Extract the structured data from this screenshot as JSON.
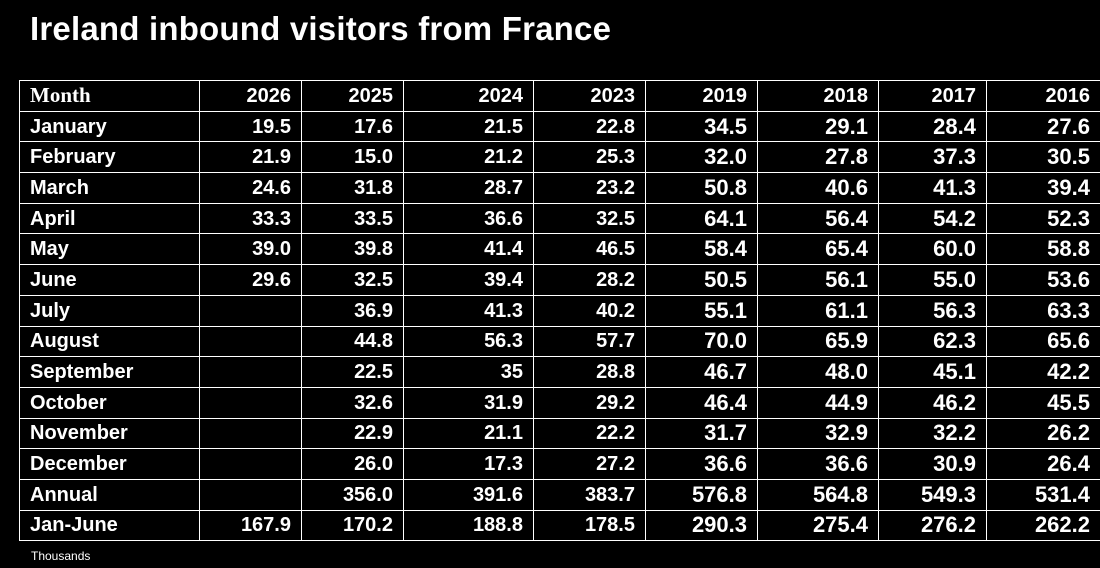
{
  "title": "Ireland inbound visitors from France",
  "footnote": "Thousands",
  "colors": {
    "background": "#000000",
    "text": "#ffffff",
    "grid": "#ffffff"
  },
  "chart_data": {
    "type": "table",
    "title": "Ireland inbound visitors from France",
    "row_header": "Month",
    "columns": [
      "2026",
      "2025",
      "2024",
      "2023",
      "2019",
      "2018",
      "2017",
      "2016"
    ],
    "rows": [
      {
        "label": "January",
        "values": [
          "19.5",
          "17.6",
          "21.5",
          "22.8",
          "34.5",
          "29.1",
          "28.4",
          "27.6"
        ]
      },
      {
        "label": "February",
        "values": [
          "21.9",
          "15.0",
          "21.2",
          "25.3",
          "32.0",
          "27.8",
          "37.3",
          "30.5"
        ]
      },
      {
        "label": "March",
        "values": [
          "24.6",
          "31.8",
          "28.7",
          "23.2",
          "50.8",
          "40.6",
          "41.3",
          "39.4"
        ]
      },
      {
        "label": "April",
        "values": [
          "33.3",
          "33.5",
          "36.6",
          "32.5",
          "64.1",
          "56.4",
          "54.2",
          "52.3"
        ]
      },
      {
        "label": "May",
        "values": [
          "39.0",
          "39.8",
          "41.4",
          "46.5",
          "58.4",
          "65.4",
          "60.0",
          "58.8"
        ]
      },
      {
        "label": "June",
        "values": [
          "29.6",
          "32.5",
          "39.4",
          "28.2",
          "50.5",
          "56.1",
          "55.0",
          "53.6"
        ]
      },
      {
        "label": "July",
        "values": [
          "",
          "36.9",
          "41.3",
          "40.2",
          "55.1",
          "61.1",
          "56.3",
          "63.3"
        ]
      },
      {
        "label": "August",
        "values": [
          "",
          "44.8",
          "56.3",
          "57.7",
          "70.0",
          "65.9",
          "62.3",
          "65.6"
        ]
      },
      {
        "label": "September",
        "values": [
          "",
          "22.5",
          "35",
          "28.8",
          "46.7",
          "48.0",
          "45.1",
          "42.2"
        ]
      },
      {
        "label": "October",
        "values": [
          "",
          "32.6",
          "31.9",
          "29.2",
          "46.4",
          "44.9",
          "46.2",
          "45.5"
        ]
      },
      {
        "label": "November",
        "values": [
          "",
          "22.9",
          "21.1",
          "22.2",
          "31.7",
          "32.9",
          "32.2",
          "26.2"
        ]
      },
      {
        "label": "December",
        "values": [
          "",
          "26.0",
          "17.3",
          "27.2",
          "36.6",
          "36.6",
          "30.9",
          "26.4"
        ]
      },
      {
        "label": "Annual",
        "values": [
          "",
          "356.0",
          "391.6",
          "383.7",
          "576.8",
          "564.8",
          "549.3",
          "531.4"
        ]
      },
      {
        "label": "Jan-June",
        "values": [
          "167.9",
          "170.2",
          "188.8",
          "178.5",
          "290.3",
          "275.4",
          "276.2",
          "262.2"
        ]
      }
    ],
    "unit": "Thousands"
  }
}
